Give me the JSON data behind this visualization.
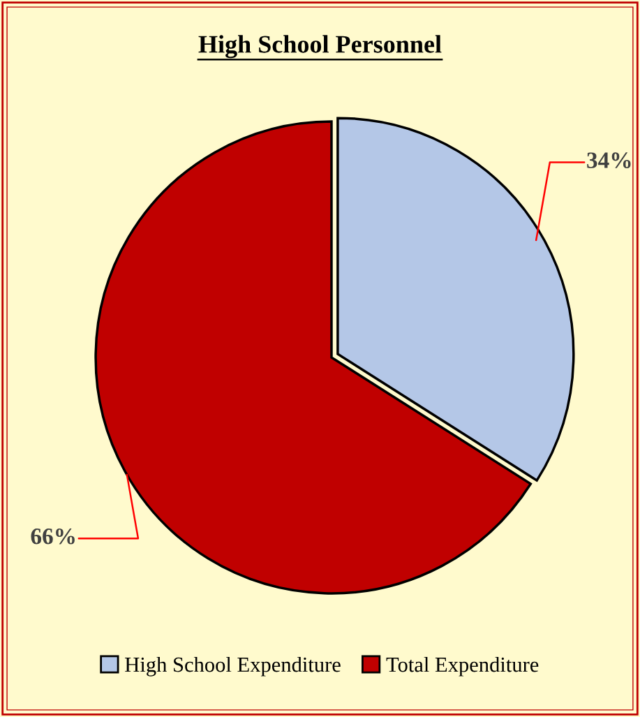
{
  "chart_data": {
    "type": "pie",
    "title": "High School Personnel",
    "categories": [
      "High School Expenditure",
      "Total Expenditure"
    ],
    "values": [
      34,
      66
    ],
    "colors": [
      "#b4c7e7",
      "#c00000"
    ],
    "value_labels": [
      "34%",
      "66%"
    ],
    "legend": "bottom"
  }
}
